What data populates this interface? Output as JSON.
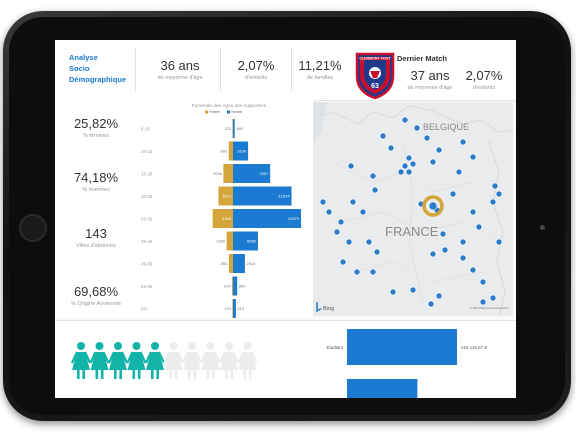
{
  "header": {
    "title_lines": [
      "Analyse",
      "Socio",
      "Démographique"
    ],
    "kpis": [
      {
        "value": "36 ans",
        "label": "de moyenne d'âge"
      },
      {
        "value": "2,07%",
        "label": "d'enfants"
      },
      {
        "value": "11,21%",
        "label": "de familles"
      }
    ],
    "logo_text": "CLERMONT FOOT",
    "logo_number": "63",
    "match": {
      "title": "Dernier Match",
      "kpis": [
        {
          "value": "37 ans",
          "label": "de moyenne d'âge"
        },
        {
          "value": "2,07%",
          "label": "d'enfants"
        }
      ]
    }
  },
  "stats": [
    {
      "value": "25,82%",
      "label": "% femmes"
    },
    {
      "value": "74,18%",
      "label": "% hommes"
    },
    {
      "value": "143",
      "label": "Villes d'abonnés"
    },
    {
      "value": "69,68%",
      "label": "% Origine Auvernois"
    }
  ],
  "pyramid": {
    "title": "Pyramide des Âges des supporters",
    "legend": [
      {
        "name": "Femme",
        "color": "#d4a53a"
      },
      {
        "name": "Homme",
        "color": "#1b7ad1"
      }
    ],
    "rows": [
      {
        "age": "0-10",
        "femme": 123,
        "homme": 360
      },
      {
        "age": "10-15",
        "femme": 892,
        "homme": 3190
      },
      {
        "age": "15-20",
        "femme": 2026,
        "homme": 7857
      },
      {
        "age": "20-25",
        "femme": 3073,
        "homme": 12374
      },
      {
        "age": "25-35",
        "femme": 4306,
        "homme": 14370
      },
      {
        "age": "35-45",
        "femme": 1350,
        "homme": 5266
      },
      {
        "age": "45-55",
        "femme": 854,
        "homme": 2515
      },
      {
        "age": "55-65",
        "femme": 224,
        "homme": 890
      },
      {
        "age": "65+",
        "femme": 124,
        "homme": 615
      }
    ]
  },
  "map": {
    "labels": [
      "BELGIQUE",
      "FRANCE"
    ],
    "attribution": "Bing",
    "copyright": "© 2020 Microsoft Corporation",
    "colors": {
      "land": "#e9ebec",
      "dot": "#2b7bc9",
      "highlight": "#d4a53a"
    }
  },
  "bottom": {
    "people_total": 10,
    "people_filled": 5,
    "people_color": "#12b3a8",
    "bars": [
      {
        "label": "Etudiant",
        "value": "216 119,67 €",
        "fraction": 1.0
      },
      {
        "label": "",
        "value": "",
        "fraction": 0.64
      }
    ]
  }
}
